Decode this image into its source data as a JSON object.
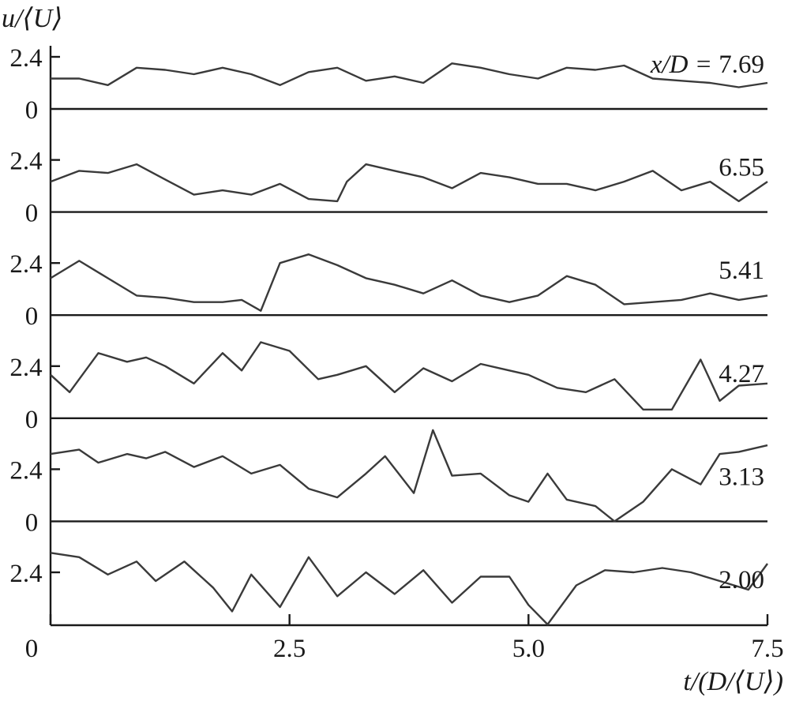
{
  "chart_data": {
    "type": "line",
    "xlabel": "t/(D/⟨U⟩)",
    "ylabel": "u/⟨U⟩",
    "xlim": [
      0,
      7.5
    ],
    "x_ticks": [
      "0",
      "2.5",
      "5.0",
      "7.5"
    ],
    "panel_y_ticks": [
      "2.4",
      "0"
    ],
    "series_label_prefix": "x/D = ",
    "series": [
      {
        "name": "7.69",
        "t": [
          0.0,
          0.3,
          0.6,
          0.9,
          1.2,
          1.5,
          1.8,
          2.1,
          2.4,
          2.7,
          3.0,
          3.3,
          3.6,
          3.9,
          4.2,
          4.5,
          4.8,
          5.1,
          5.4,
          5.7,
          6.0,
          6.3,
          6.6,
          6.9,
          7.2,
          7.5
        ],
        "u": [
          1.4,
          1.4,
          1.1,
          1.9,
          1.8,
          1.6,
          1.9,
          1.6,
          1.1,
          1.7,
          1.9,
          1.3,
          1.5,
          1.2,
          2.1,
          1.9,
          1.6,
          1.4,
          1.9,
          1.8,
          2.0,
          1.4,
          1.3,
          1.2,
          1.0,
          1.2
        ]
      },
      {
        "name": "6.55",
        "t": [
          0.0,
          0.3,
          0.6,
          0.9,
          1.2,
          1.5,
          1.8,
          2.1,
          2.4,
          2.7,
          3.0,
          3.1,
          3.3,
          3.6,
          3.9,
          4.2,
          4.5,
          4.8,
          5.1,
          5.4,
          5.7,
          6.0,
          6.3,
          6.6,
          6.9,
          7.2,
          7.5
        ],
        "u": [
          1.4,
          1.9,
          1.8,
          2.2,
          1.5,
          0.8,
          1.0,
          0.8,
          1.3,
          0.6,
          0.5,
          1.4,
          2.2,
          1.9,
          1.6,
          1.1,
          1.8,
          1.6,
          1.3,
          1.3,
          1.0,
          1.4,
          1.9,
          1.0,
          1.4,
          0.5,
          1.4
        ]
      },
      {
        "name": "5.41",
        "t": [
          0.0,
          0.3,
          0.6,
          0.9,
          1.2,
          1.5,
          1.8,
          2.0,
          2.2,
          2.4,
          2.7,
          3.0,
          3.3,
          3.6,
          3.9,
          4.2,
          4.5,
          4.8,
          5.1,
          5.4,
          5.7,
          6.0,
          6.3,
          6.6,
          6.9,
          7.2,
          7.5
        ],
        "u": [
          1.7,
          2.5,
          1.7,
          0.9,
          0.8,
          0.6,
          0.6,
          0.7,
          0.2,
          2.4,
          2.8,
          2.3,
          1.7,
          1.4,
          1.0,
          1.6,
          0.9,
          0.6,
          0.9,
          1.8,
          1.4,
          0.5,
          0.6,
          0.7,
          1.0,
          0.7,
          0.9
        ]
      },
      {
        "name": "4.27",
        "t": [
          0.0,
          0.2,
          0.5,
          0.8,
          1.0,
          1.2,
          1.5,
          1.8,
          2.0,
          2.2,
          2.5,
          2.8,
          3.0,
          3.3,
          3.6,
          3.9,
          4.2,
          4.5,
          4.8,
          5.0,
          5.3,
          5.6,
          5.9,
          6.2,
          6.5,
          6.8,
          7.0,
          7.2,
          7.5
        ],
        "u": [
          2.0,
          1.2,
          3.0,
          2.6,
          2.8,
          2.4,
          1.6,
          3.0,
          2.2,
          3.5,
          3.1,
          1.8,
          2.0,
          2.4,
          1.2,
          2.3,
          1.7,
          2.5,
          2.2,
          2.0,
          1.4,
          1.2,
          1.8,
          0.4,
          0.4,
          2.7,
          0.8,
          1.5,
          1.6
        ]
      },
      {
        "name": "3.13",
        "t": [
          0.0,
          0.3,
          0.5,
          0.8,
          1.0,
          1.2,
          1.5,
          1.8,
          2.1,
          2.4,
          2.7,
          3.0,
          3.3,
          3.5,
          3.8,
          4.0,
          4.2,
          4.5,
          4.8,
          5.0,
          5.2,
          5.4,
          5.7,
          5.9,
          6.2,
          6.5,
          6.8,
          7.0,
          7.2,
          7.5
        ],
        "u": [
          3.1,
          3.3,
          2.7,
          3.1,
          2.9,
          3.2,
          2.5,
          3.0,
          2.2,
          2.6,
          1.5,
          1.1,
          2.2,
          3.0,
          1.3,
          4.2,
          2.1,
          2.2,
          1.2,
          0.9,
          2.2,
          1.0,
          0.7,
          0.0,
          0.9,
          2.4,
          1.7,
          3.1,
          3.2,
          3.5
        ]
      },
      {
        "name": "2.00",
        "t": [
          0.0,
          0.3,
          0.6,
          0.9,
          1.1,
          1.4,
          1.7,
          1.9,
          2.1,
          2.4,
          2.7,
          3.0,
          3.3,
          3.6,
          3.9,
          4.2,
          4.5,
          4.8,
          5.0,
          5.2,
          5.5,
          5.8,
          6.1,
          6.4,
          6.7,
          7.0,
          7.3,
          7.5
        ],
        "u": [
          3.3,
          3.1,
          2.3,
          2.9,
          2.0,
          2.9,
          1.7,
          0.6,
          2.3,
          0.8,
          3.1,
          1.3,
          2.4,
          1.4,
          2.5,
          1.0,
          2.2,
          2.2,
          0.9,
          0.0,
          1.8,
          2.5,
          2.4,
          2.6,
          2.4,
          2.0,
          1.6,
          2.8
        ]
      }
    ]
  }
}
